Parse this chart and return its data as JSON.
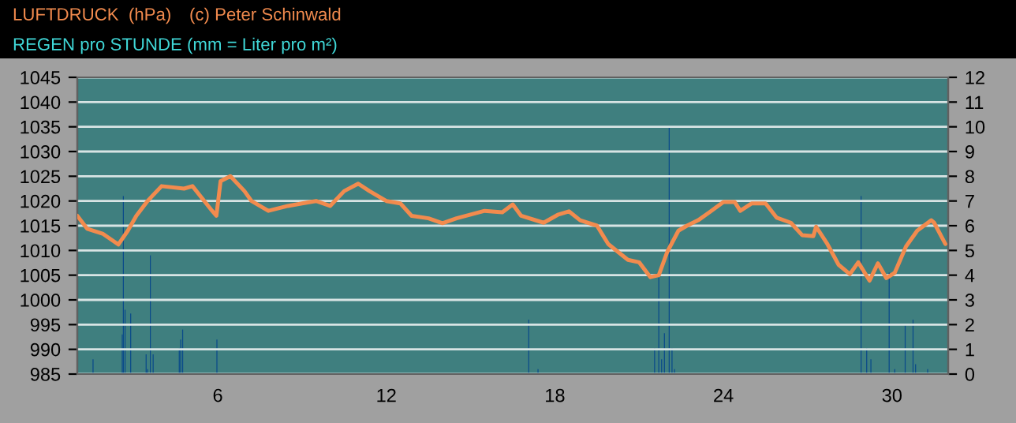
{
  "chart_data": {
    "type": "line",
    "annotations": [
      "(c) Peter Schinwald"
    ],
    "title": "LUFTDRUCK  (hPa)",
    "subtitle": "REGEN pro STUNDE (mm = Liter pro m²)",
    "grid": true,
    "xlim": [
      1,
      32
    ],
    "xticks": [
      6,
      12,
      18,
      24,
      30
    ],
    "ylim": [
      985,
      1045
    ],
    "yticks": [
      985,
      990,
      995,
      1000,
      1005,
      1010,
      1015,
      1020,
      1025,
      1030,
      1035,
      1040,
      1045
    ],
    "y2lim": [
      0,
      12
    ],
    "y2ticks": [
      0,
      1,
      2,
      3,
      4,
      5,
      6,
      7,
      8,
      9,
      10,
      11,
      12
    ],
    "series": [
      {
        "type": "bar",
        "axis": "y2",
        "color": "#0a4a8a",
        "x": [
          1.56,
          2.6,
          2.64,
          2.7,
          2.9,
          3.45,
          3.5,
          3.6,
          3.7,
          4.63,
          4.68,
          4.75,
          5.97,
          17.07,
          17.4,
          21.55,
          21.7,
          21.8,
          21.9,
          22.07,
          22.17,
          22.26,
          28.9,
          29.1,
          29.25,
          29.9,
          30.1,
          30.47,
          30.75,
          30.84,
          31.27
        ],
        "values": [
          0.6,
          1.6,
          7.2,
          2.6,
          2.45,
          0.8,
          0.2,
          4.8,
          0.8,
          1.05,
          1.4,
          1.8,
          1.4,
          2.2,
          0.2,
          1.05,
          3.9,
          0.6,
          1.65,
          10.0,
          1.05,
          0.2,
          7.2,
          1.05,
          0.6,
          4.1,
          0.2,
          2.0,
          2.2,
          0.4,
          0.2
        ]
      },
      {
        "color": "#f28b4e",
        "x": [
          1.0,
          1.35,
          1.9,
          2.46,
          2.8,
          3.1,
          3.5,
          4.0,
          4.8,
          5.1,
          5.8,
          5.95,
          6.1,
          6.45,
          6.95,
          7.2,
          7.8,
          8.5,
          9.0,
          9.5,
          10.0,
          10.5,
          11.0,
          11.4,
          12.0,
          12.5,
          12.9,
          13.5,
          14.0,
          14.5,
          15.5,
          16.13,
          16.5,
          16.8,
          17.6,
          18.1,
          18.5,
          18.9,
          19.5,
          19.9,
          20.6,
          21.0,
          21.4,
          21.7,
          22.0,
          22.4,
          22.7,
          23.1,
          23.5,
          24.0,
          24.4,
          24.6,
          25.0,
          25.5,
          25.9,
          26.4,
          26.8,
          27.2,
          27.3,
          27.7,
          28.1,
          28.5,
          28.8,
          29.2,
          29.5,
          29.8,
          30.1,
          30.5,
          30.9,
          31.4,
          31.5,
          31.9
        ],
        "values": [
          1017,
          1014.4,
          1013.4,
          1011.2,
          1014,
          1017,
          1020,
          1023,
          1022.5,
          1023,
          1018,
          1017,
          1024,
          1025,
          1022,
          1020,
          1018,
          1019,
          1019.5,
          1020,
          1019,
          1022,
          1023.5,
          1022,
          1020,
          1019.5,
          1017,
          1016.5,
          1015.5,
          1016.5,
          1018,
          1017.7,
          1019.3,
          1017,
          1015.6,
          1017.2,
          1017.9,
          1016.1,
          1015,
          1011.3,
          1008.1,
          1007.6,
          1004.6,
          1005,
          1009.7,
          1014,
          1015,
          1016.1,
          1017.7,
          1019.8,
          1019.8,
          1018,
          1019.5,
          1019.5,
          1016.6,
          1015.6,
          1013.1,
          1012.9,
          1014.8,
          1011.3,
          1007.1,
          1005.2,
          1007.6,
          1003.9,
          1007.4,
          1004.4,
          1005.5,
          1010.8,
          1014,
          1016.1,
          1015.6,
          1011.3
        ]
      }
    ]
  }
}
